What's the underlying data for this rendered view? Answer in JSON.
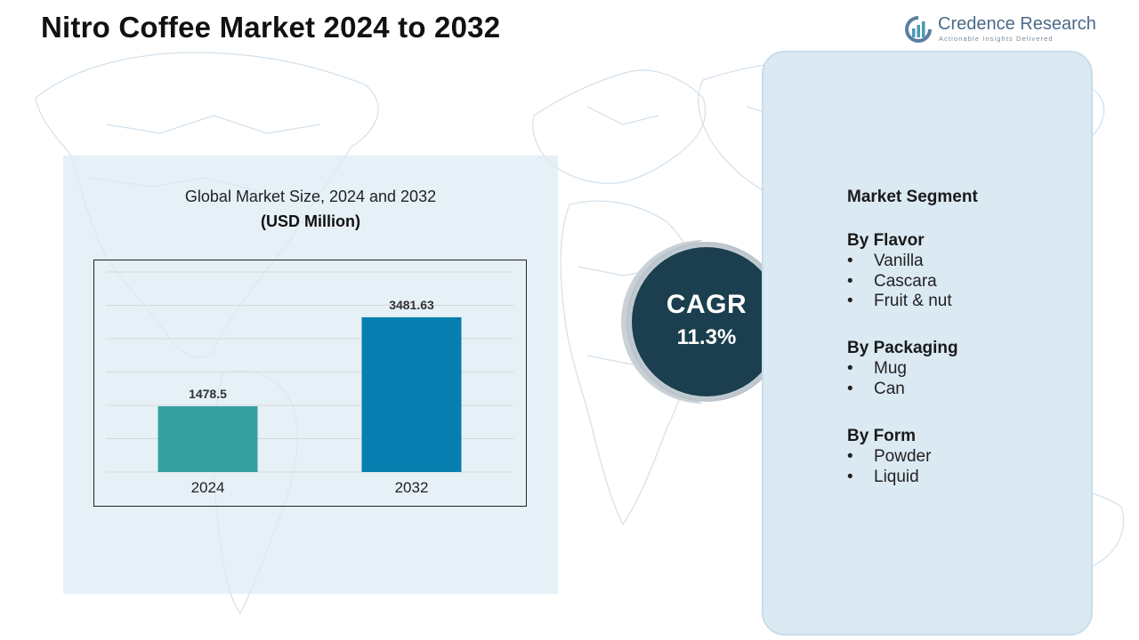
{
  "header": {
    "title": "Nitro Coffee Market  2024 to 2032",
    "logo_name": "Credence Research",
    "logo_tagline": "Actionable Insights Delivered"
  },
  "chart_panel": {
    "title": "Global Market Size, 2024 and 2032",
    "unit": "(USD Million)"
  },
  "chart_data": {
    "type": "bar",
    "title": "Global Market Size, 2024 and 2032",
    "subtitle": "(USD Million)",
    "categories": [
      "2024",
      "2032"
    ],
    "values": [
      1478.5,
      3481.63
    ],
    "value_labels": [
      "1478.5",
      "3481.63"
    ],
    "colors": [
      "#35a0a0",
      "#067eb0"
    ],
    "ylim": [
      0,
      4500
    ],
    "grid": true,
    "xlabel": "",
    "ylabel": ""
  },
  "cagr": {
    "label": "CAGR",
    "value": "11.3%",
    "color": "#1b3f4e"
  },
  "segments": {
    "heading": "Market Segment",
    "groups": [
      {
        "title": "By Flavor",
        "items": [
          "Vanilla",
          "Cascara",
          "Fruit & nut"
        ]
      },
      {
        "title": "By Packaging",
        "items": [
          "Mug",
          "Can"
        ]
      },
      {
        "title": "By Form",
        "items": [
          "Powder",
          "Liquid"
        ]
      }
    ],
    "bullet": "•"
  }
}
